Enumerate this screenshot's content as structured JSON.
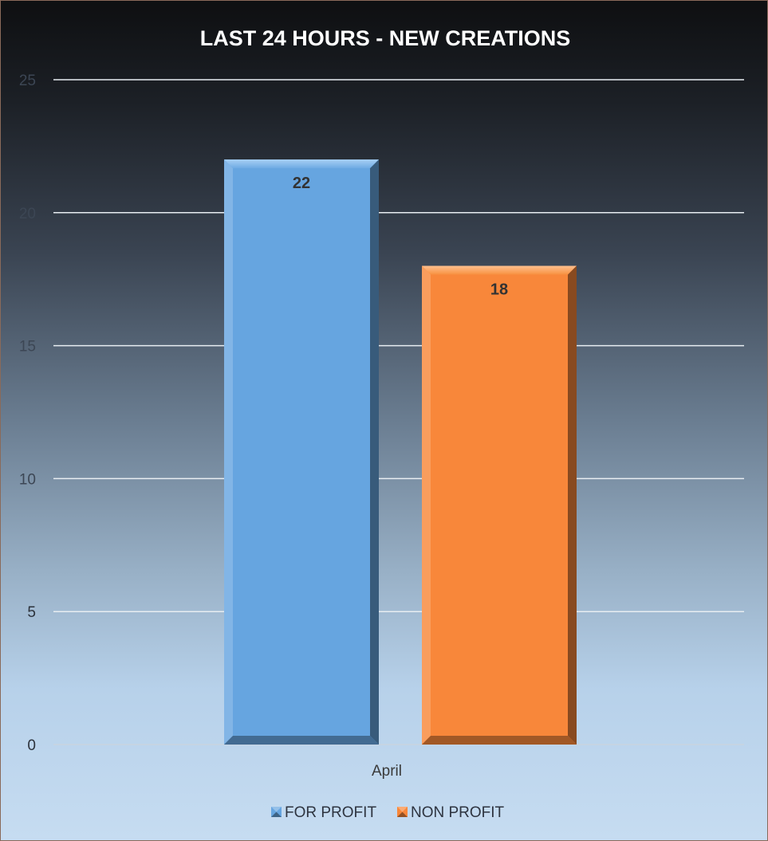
{
  "chart_data": {
    "type": "bar",
    "title": "LAST 24 HOURS - NEW CREATIONS",
    "categories": [
      "April"
    ],
    "series": [
      {
        "name": "FOR PROFIT",
        "values": [
          22
        ],
        "color": "#66a5e0"
      },
      {
        "name": "NON PROFIT",
        "values": [
          18
        ],
        "color": "#f8873a"
      }
    ],
    "ylim": [
      0,
      25
    ],
    "yticks": [
      0,
      5,
      10,
      15,
      20,
      25
    ],
    "grid": true,
    "data_labels": true,
    "legend_position": "bottom"
  }
}
